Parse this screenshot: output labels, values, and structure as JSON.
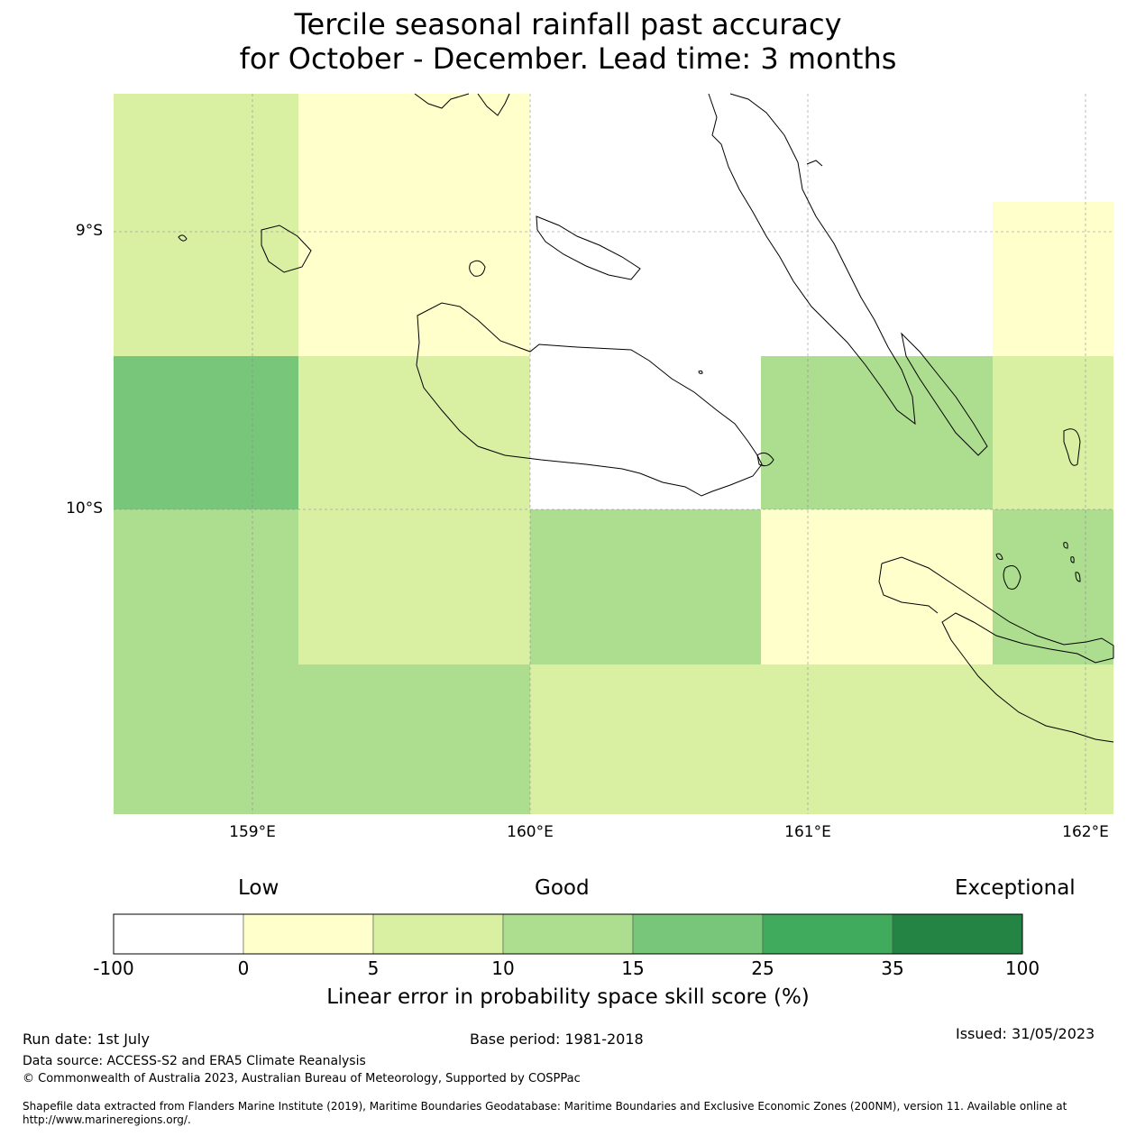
{
  "title": {
    "line1": "Tercile seasonal rainfall past accuracy",
    "line2": "for October - December. Lead time: 3 months"
  },
  "map": {
    "lat_labels": [
      "9°S",
      "10°S"
    ],
    "lon_labels": [
      "159°E",
      "160°E",
      "161°E",
      "162°E"
    ],
    "colors": {
      "below_0": "#ffffff",
      "0_5": "#ffffcc",
      "5_10": "#d9f0a3",
      "10_15": "#addd8e",
      "15_25": "#78c679",
      "25_35": "#41ab5d",
      "35_100": "#238443"
    },
    "grid_cells": [
      {
        "col": 0,
        "row": 0,
        "class": "5_10"
      },
      {
        "col": 1,
        "row": 0,
        "class": "0_5"
      },
      {
        "col": 2,
        "row": 0,
        "class": "below_0"
      },
      {
        "col": 3,
        "row": 0,
        "class": "below_0"
      },
      {
        "col": 4,
        "row": 0,
        "class": "0_5"
      },
      {
        "col": 0,
        "row": 1,
        "class": "15_25"
      },
      {
        "col": 1,
        "row": 1,
        "class": "5_10"
      },
      {
        "col": 2,
        "row": 1,
        "class": "below_0"
      },
      {
        "col": 3,
        "row": 1,
        "class": "10_15"
      },
      {
        "col": 4,
        "row": 1,
        "class": "5_10"
      },
      {
        "col": 0,
        "row": 2,
        "class": "10_15"
      },
      {
        "col": 1,
        "row": 2,
        "class": "5_10"
      },
      {
        "col": 2,
        "row": 2,
        "class": "10_15"
      },
      {
        "col": 3,
        "row": 2,
        "class": "0_5"
      },
      {
        "col": 4,
        "row": 2,
        "class": "10_15"
      },
      {
        "col": 0,
        "row": 3,
        "class": "10_15"
      },
      {
        "col": 1,
        "row": 3,
        "class": "10_15"
      },
      {
        "col": 2,
        "row": 3,
        "class": "5_10"
      },
      {
        "col": 3,
        "row": 3,
        "class": "5_10"
      },
      {
        "col": 4,
        "row": 3,
        "class": "5_10"
      }
    ]
  },
  "colorbar": {
    "category_labels": [
      "Low",
      "Good",
      "Exceptional"
    ],
    "ticks": [
      "-100",
      "0",
      "5",
      "10",
      "15",
      "25",
      "35",
      "100"
    ],
    "colors": [
      "#ffffff",
      "#ffffcc",
      "#d9f0a3",
      "#addd8e",
      "#78c679",
      "#41ab5d",
      "#238443"
    ],
    "label": "Linear error in probability space skill score (%)"
  },
  "footer": {
    "run_date": "Run date: 1st July",
    "base_period": "Base period: 1981-2018",
    "issued": "Issued: 31/05/2023",
    "data_source": "Data source: ACCESS-S2 and ERA5 Climate Reanalysis",
    "copyright": "© Commonwealth of Australia 2023, Australian Bureau of Meteorology, Supported by COSPPac",
    "shapefile": "Shapefile data extracted from Flanders Marine Institute (2019), Maritime Boundaries Geodatabase: Maritime Boundaries and Exclusive Economic Zones (200NM), version 11. Available online at http://www.marineregions.org/."
  }
}
